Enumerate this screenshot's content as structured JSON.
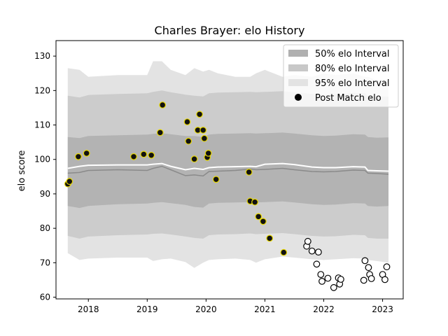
{
  "chart_data": {
    "type": "scatter",
    "title": "Charles Brayer: elo History",
    "xlabel": "",
    "ylabel": "elo score",
    "xlim": [
      2017.45,
      2023.35
    ],
    "ylim": [
      59.5,
      134.5
    ],
    "xticks": [
      2018,
      2019,
      2020,
      2021,
      2022,
      2023
    ],
    "xtick_labels": [
      "2018",
      "2019",
      "2020",
      "2021",
      "2022",
      "2023"
    ],
    "yticks": [
      60,
      70,
      80,
      90,
      100,
      110,
      120,
      130
    ],
    "ytick_labels": [
      "60",
      "70",
      "80",
      "90",
      "100",
      "110",
      "120",
      "130"
    ],
    "grid": false,
    "legend_position": "top-right",
    "legend": [
      {
        "label": "50% elo Interval",
        "kind": "band",
        "color": "#b0b0b0"
      },
      {
        "label": "80% elo Interval",
        "kind": "band",
        "color": "#c8c8c8"
      },
      {
        "label": "95% elo Interval",
        "kind": "band",
        "color": "#e3e3e3"
      },
      {
        "label": "Post Match elo",
        "kind": "marker",
        "color": "#000000"
      }
    ],
    "band_colors": {
      "ci95": "#e3e3e3",
      "ci80": "#cccccc",
      "ci50": "#b3b3b3"
    },
    "bands": {
      "x": [
        2017.65,
        2017.85,
        2018.0,
        2018.5,
        2019.0,
        2019.1,
        2019.25,
        2019.4,
        2019.65,
        2019.8,
        2019.95,
        2020.05,
        2020.2,
        2020.5,
        2020.75,
        2020.85,
        2021.0,
        2021.3,
        2021.5,
        2021.8,
        2022.0,
        2022.2,
        2022.5,
        2022.7,
        2022.75,
        2022.9,
        2023.1
      ],
      "center": [
        96.0,
        96.2,
        96.8,
        97.0,
        96.8,
        97.4,
        98.0,
        97.0,
        95.3,
        95.5,
        95.2,
        96.5,
        96.6,
        96.8,
        97.2,
        97.0,
        97.1,
        97.4,
        97.0,
        96.5,
        96.4,
        96.5,
        96.9,
        96.8,
        96.0,
        95.9,
        95.7
      ],
      "line": [
        97.4,
        98.0,
        98.3,
        98.4,
        98.4,
        98.6,
        98.8,
        98.0,
        97.0,
        97.4,
        97.1,
        97.6,
        97.8,
        97.9,
        98.0,
        97.9,
        98.6,
        98.8,
        98.5,
        97.8,
        97.6,
        97.6,
        97.9,
        97.8,
        96.8,
        96.7,
        96.6
      ],
      "lo50": [
        86.5,
        85.9,
        86.5,
        87.0,
        87.2,
        87.4,
        87.6,
        87.3,
        86.8,
        86.2,
        86.0,
        87.2,
        87.4,
        87.5,
        87.6,
        87.5,
        87.6,
        87.8,
        87.5,
        87.0,
        86.8,
        86.9,
        87.3,
        87.2,
        86.5,
        86.3,
        86.5
      ],
      "hi50": [
        106.5,
        106.2,
        106.8,
        107.0,
        107.2,
        107.4,
        107.6,
        107.3,
        106.8,
        106.8,
        106.5,
        107.2,
        107.4,
        107.5,
        107.6,
        107.5,
        107.6,
        107.8,
        107.5,
        107.0,
        106.8,
        106.9,
        107.3,
        107.2,
        106.5,
        106.3,
        106.4
      ],
      "lo80": [
        77.8,
        77.0,
        77.6,
        78.0,
        78.2,
        78.4,
        78.5,
        78.2,
        77.6,
        77.2,
        77.0,
        78.0,
        78.2,
        78.3,
        78.5,
        78.3,
        78.4,
        78.6,
        78.3,
        77.8,
        77.6,
        77.7,
        78.1,
        78.0,
        77.2,
        77.0,
        77.0
      ],
      "hi80": [
        118.5,
        118.0,
        118.7,
        119.0,
        119.2,
        119.6,
        120.0,
        119.5,
        118.8,
        118.5,
        118.3,
        119.2,
        119.4,
        119.5,
        119.6,
        119.5,
        119.6,
        119.8,
        119.5,
        119.0,
        118.8,
        118.9,
        119.3,
        119.2,
        118.5,
        118.2,
        118.2
      ],
      "lo95": [
        72.8,
        70.8,
        71.2,
        71.5,
        71.5,
        70.5,
        71.0,
        71.2,
        70.2,
        68.5,
        70.0,
        70.8,
        71.0,
        71.2,
        70.8,
        70.0,
        71.0,
        71.8,
        71.5,
        71.0,
        70.8,
        71.0,
        71.3,
        71.2,
        70.8,
        70.5,
        70.0
      ],
      "hi95": [
        126.5,
        126.0,
        124.0,
        124.5,
        124.5,
        128.5,
        128.5,
        126.0,
        124.5,
        126.5,
        125.5,
        126.0,
        125.0,
        124.0,
        124.0,
        125.0,
        126.0,
        124.0,
        124.5,
        124.0,
        125.0,
        124.5,
        125.0,
        124.0,
        124.0,
        123.0,
        123.0
      ]
    },
    "series": [
      {
        "name": "Post Match elo",
        "style": "filled",
        "fill": "#111111",
        "edge": "#e8d800",
        "points": [
          [
            2017.65,
            92.9
          ],
          [
            2017.68,
            93.6
          ],
          [
            2017.83,
            100.8
          ],
          [
            2017.97,
            101.8
          ],
          [
            2018.77,
            100.8
          ],
          [
            2018.94,
            101.5
          ],
          [
            2019.07,
            101.2
          ],
          [
            2019.22,
            107.8
          ],
          [
            2019.26,
            115.8
          ],
          [
            2019.68,
            110.9
          ],
          [
            2019.7,
            105.3
          ],
          [
            2019.8,
            100.1
          ],
          [
            2019.86,
            108.5
          ],
          [
            2019.89,
            113.1
          ],
          [
            2019.95,
            108.5
          ],
          [
            2019.97,
            106.1
          ],
          [
            2020.02,
            100.6
          ],
          [
            2020.04,
            101.8
          ],
          [
            2020.17,
            94.2
          ],
          [
            2020.73,
            96.3
          ],
          [
            2020.75,
            87.9
          ],
          [
            2020.83,
            87.6
          ],
          [
            2020.89,
            83.4
          ],
          [
            2020.97,
            82.0
          ],
          [
            2021.08,
            77.1
          ],
          [
            2021.32,
            73.0
          ]
        ]
      },
      {
        "name": "",
        "style": "open",
        "fill": "#ffffff",
        "edge": "#000000",
        "points": [
          [
            2021.71,
            74.8
          ],
          [
            2021.73,
            76.2
          ],
          [
            2021.8,
            73.4
          ],
          [
            2021.88,
            69.6
          ],
          [
            2021.91,
            73.1
          ],
          [
            2021.95,
            66.6
          ],
          [
            2021.97,
            64.6
          ],
          [
            2022.07,
            65.5
          ],
          [
            2022.17,
            62.8
          ],
          [
            2022.25,
            65.6
          ],
          [
            2022.27,
            63.8
          ],
          [
            2022.29,
            65.2
          ],
          [
            2022.68,
            64.9
          ],
          [
            2022.7,
            70.6
          ],
          [
            2022.76,
            68.6
          ],
          [
            2022.78,
            66.6
          ],
          [
            2022.81,
            65.4
          ],
          [
            2023.0,
            66.6
          ],
          [
            2023.04,
            65.1
          ],
          [
            2023.07,
            68.8
          ]
        ]
      }
    ]
  }
}
